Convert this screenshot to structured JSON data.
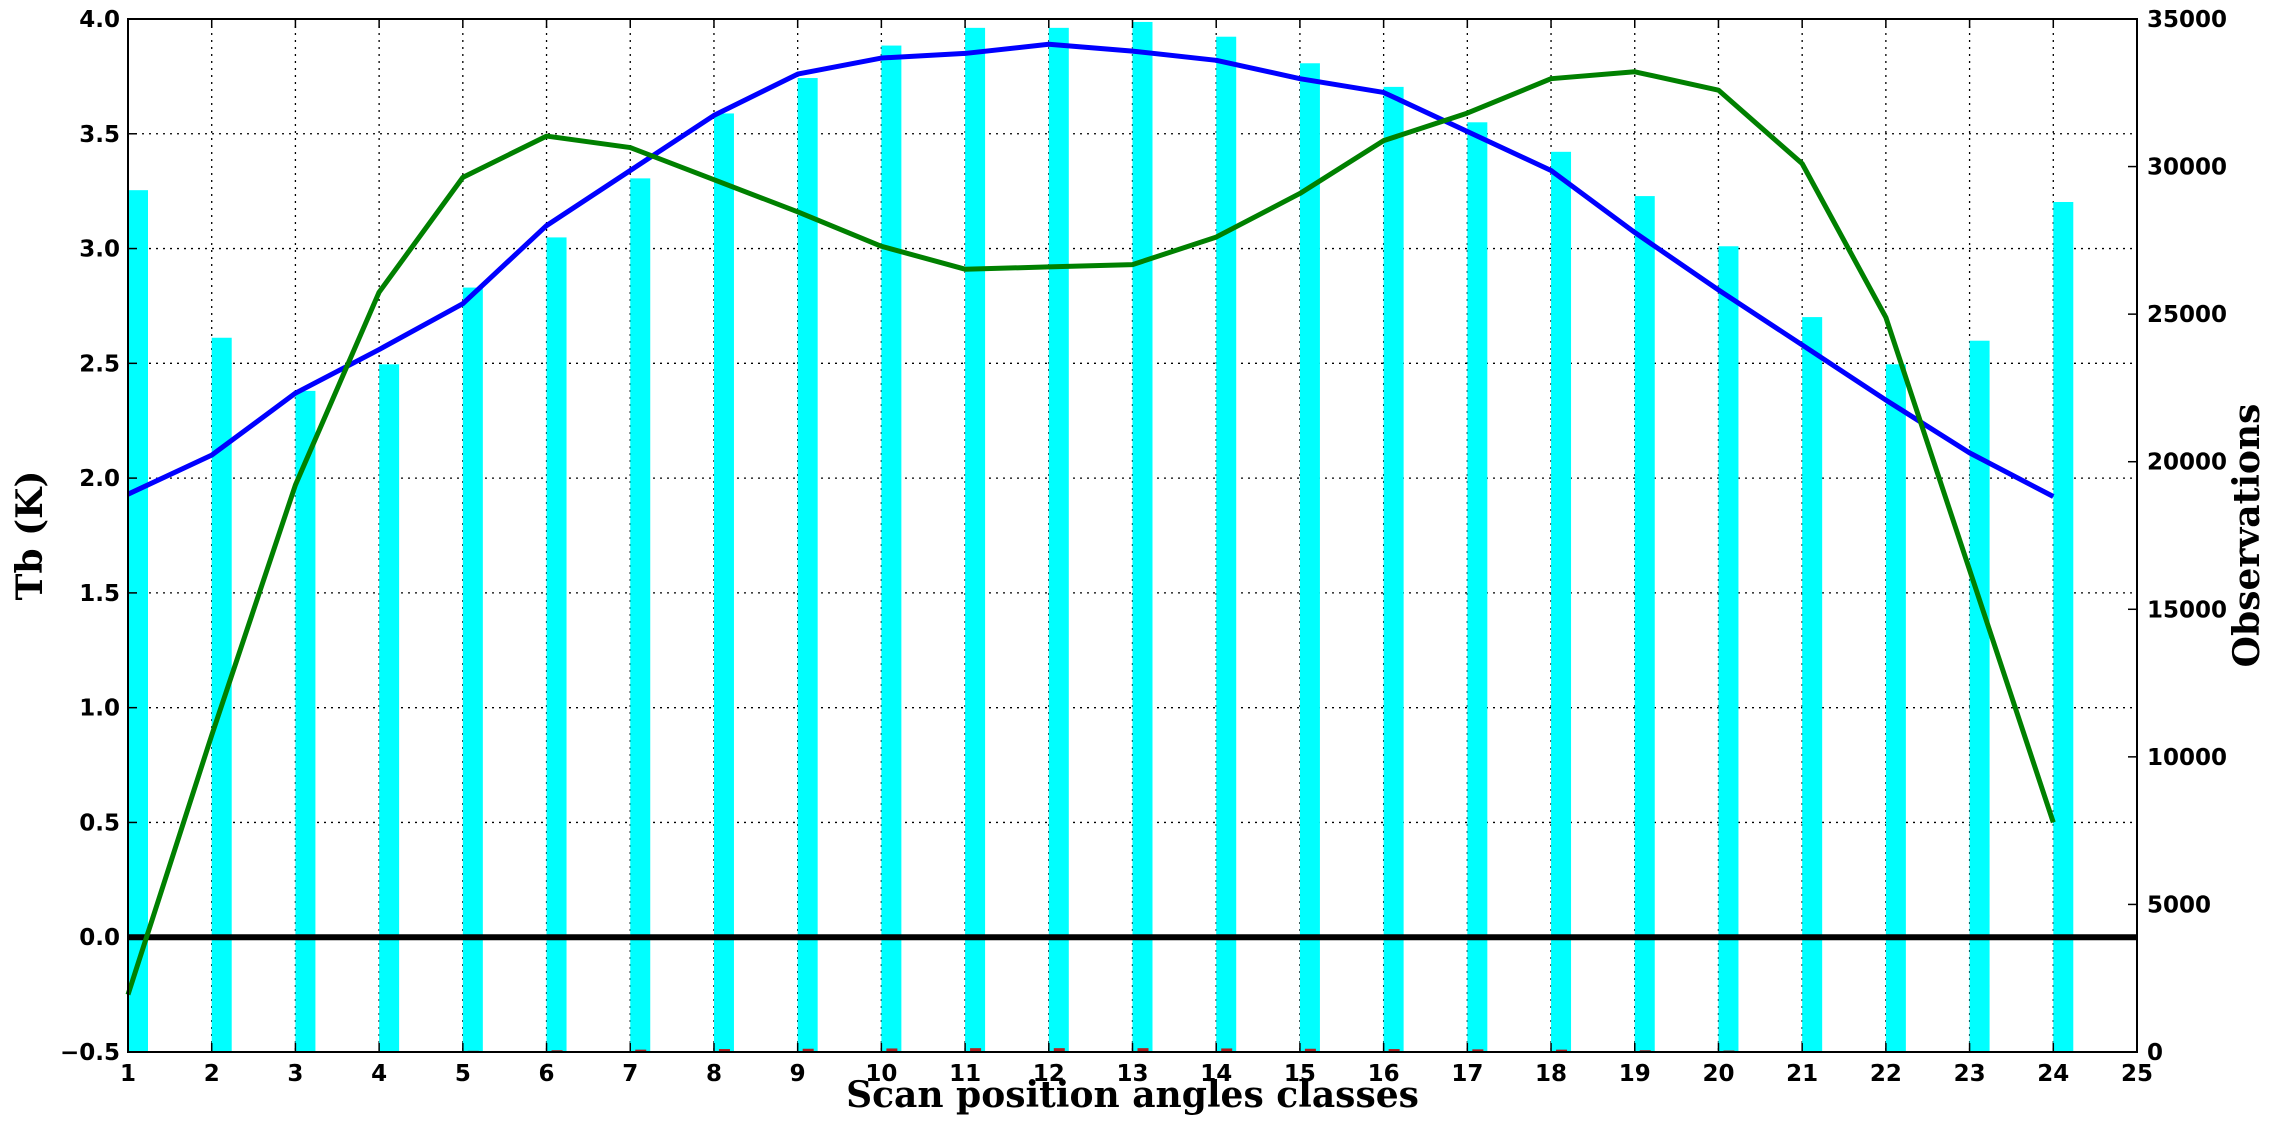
{
  "chart_data": {
    "type": "bar",
    "xlabel": "Scan position angles classes",
    "ylabel": "Tb (K)",
    "y2label": "Observations",
    "xlim": [
      1,
      25
    ],
    "ylim": [
      -0.5,
      4.0
    ],
    "y2lim": [
      0,
      35000
    ],
    "grid": true,
    "x_ticks": [
      "1",
      "2",
      "3",
      "4",
      "5",
      "6",
      "7",
      "8",
      "9",
      "10",
      "11",
      "12",
      "13",
      "14",
      "15",
      "16",
      "17",
      "18",
      "19",
      "20",
      "21",
      "22",
      "23",
      "24",
      "25"
    ],
    "y_ticks": [
      "−0.5",
      "0.0",
      "0.5",
      "1.0",
      "1.5",
      "2.0",
      "2.5",
      "3.0",
      "3.5",
      "4.0"
    ],
    "y2_ticks": [
      "0",
      "5000",
      "10000",
      "15000",
      "20000",
      "25000",
      "30000",
      "35000"
    ],
    "zero_line": 0.0,
    "x": [
      1,
      2,
      3,
      4,
      5,
      6,
      7,
      8,
      9,
      10,
      11,
      12,
      13,
      14,
      15,
      16,
      17,
      18,
      19,
      20,
      21,
      22,
      23,
      24
    ],
    "bars": {
      "axis": "right",
      "color": "#00ffff",
      "values": [
        29200,
        24200,
        22400,
        23300,
        25900,
        27600,
        29600,
        31800,
        33000,
        34100,
        34700,
        34700,
        34900,
        34400,
        33500,
        32700,
        31500,
        30500,
        29000,
        27300,
        24900,
        23300,
        24100,
        28800
      ]
    },
    "small_bars": {
      "axis": "right",
      "color": "#b22222",
      "values": [
        0,
        0,
        0,
        0,
        40,
        60,
        80,
        100,
        110,
        120,
        130,
        130,
        130,
        120,
        110,
        100,
        90,
        80,
        60,
        50,
        30,
        20,
        10,
        0
      ]
    },
    "series": [
      {
        "axis": "left",
        "color": "#0000ff",
        "values": [
          1.93,
          2.1,
          2.37,
          2.56,
          2.76,
          3.1,
          3.34,
          3.58,
          3.76,
          3.83,
          3.85,
          3.89,
          3.86,
          3.82,
          3.74,
          3.68,
          3.51,
          3.34,
          3.07,
          2.82,
          2.58,
          2.34,
          2.11,
          1.92
        ]
      },
      {
        "axis": "left",
        "color": "#008000",
        "values": [
          -0.25,
          0.88,
          1.97,
          2.81,
          3.31,
          3.49,
          3.44,
          3.3,
          3.16,
          3.01,
          2.91,
          2.92,
          2.93,
          3.05,
          3.24,
          3.47,
          3.59,
          3.74,
          3.77,
          3.69,
          3.37,
          2.7,
          1.6,
          0.5
        ]
      }
    ]
  }
}
